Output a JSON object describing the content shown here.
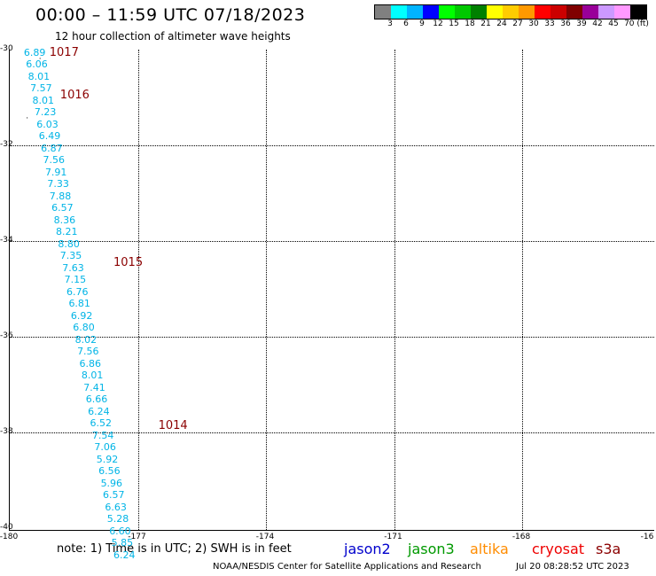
{
  "header": {
    "title": "00:00 – 11:59 UTC 07/18/2023",
    "subtitle": "12 hour collection of altimeter wave heights"
  },
  "colorbar": {
    "colors": [
      "#808080",
      "#00ffff",
      "#00b4ff",
      "#0000ff",
      "#00ff00",
      "#00c800",
      "#008000",
      "#ffff00",
      "#ffcc00",
      "#ff9900",
      "#ff0000",
      "#cc0000",
      "#800000",
      "#990099",
      "#cc99ff",
      "#ff99ff",
      "#000000"
    ],
    "labels": [
      "3",
      "6",
      "9",
      "12",
      "15",
      "18",
      "21",
      "24",
      "27",
      "30",
      "33",
      "36",
      "39",
      "42",
      "45",
      "70 (ft)"
    ]
  },
  "axes": {
    "lat_labels": [
      "-30",
      "-32",
      "-34",
      "-36",
      "-38",
      "-40"
    ],
    "lon_labels": [
      "-180",
      "-177",
      "-174",
      "-171",
      "-168",
      "-16"
    ]
  },
  "observations": [
    {
      "lat": -30.05,
      "lon": -179.65,
      "value": "6.89"
    },
    {
      "lat": -30.3,
      "lon": -179.6,
      "value": "6.06"
    },
    {
      "lat": -30.55,
      "lon": -179.55,
      "value": "8.01"
    },
    {
      "lat": -30.8,
      "lon": -179.5,
      "value": "7.57"
    },
    {
      "lat": -31.05,
      "lon": -179.45,
      "value": "8.01"
    },
    {
      "lat": -31.3,
      "lon": -179.4,
      "value": "7.23"
    },
    {
      "lat": -31.55,
      "lon": -179.35,
      "value": "6.03"
    },
    {
      "lat": -31.8,
      "lon": -179.3,
      "value": "6.49"
    },
    {
      "lat": -32.05,
      "lon": -179.25,
      "value": "6.87"
    },
    {
      "lat": -32.3,
      "lon": -179.2,
      "value": "7.56"
    },
    {
      "lat": -32.55,
      "lon": -179.15,
      "value": "7.91"
    },
    {
      "lat": -32.8,
      "lon": -179.1,
      "value": "7.33"
    },
    {
      "lat": -33.05,
      "lon": -179.05,
      "value": "7.88"
    },
    {
      "lat": -33.3,
      "lon": -179.0,
      "value": "6.57"
    },
    {
      "lat": -33.55,
      "lon": -178.95,
      "value": "8.36"
    },
    {
      "lat": -33.8,
      "lon": -178.9,
      "value": "8.21"
    },
    {
      "lat": -34.05,
      "lon": -178.85,
      "value": "8.80"
    },
    {
      "lat": -34.3,
      "lon": -178.8,
      "value": "7.35"
    },
    {
      "lat": -34.55,
      "lon": -178.75,
      "value": "7.63"
    },
    {
      "lat": -34.8,
      "lon": -178.7,
      "value": "7.15"
    },
    {
      "lat": -35.05,
      "lon": -178.65,
      "value": "6.76"
    },
    {
      "lat": -35.3,
      "lon": -178.6,
      "value": "6.81"
    },
    {
      "lat": -35.55,
      "lon": -178.55,
      "value": "6.92"
    },
    {
      "lat": -35.8,
      "lon": -178.5,
      "value": "6.80"
    },
    {
      "lat": -36.05,
      "lon": -178.45,
      "value": "8.02"
    },
    {
      "lat": -36.3,
      "lon": -178.4,
      "value": "7.56"
    },
    {
      "lat": -36.55,
      "lon": -178.35,
      "value": "6.86"
    },
    {
      "lat": -36.8,
      "lon": -178.3,
      "value": "8.01"
    },
    {
      "lat": -37.05,
      "lon": -178.25,
      "value": "7.41"
    },
    {
      "lat": -37.3,
      "lon": -178.2,
      "value": "6.66"
    },
    {
      "lat": -37.55,
      "lon": -178.15,
      "value": "6.24"
    },
    {
      "lat": -37.8,
      "lon": -178.1,
      "value": "6.52"
    },
    {
      "lat": -38.05,
      "lon": -178.05,
      "value": "7.54"
    },
    {
      "lat": -38.3,
      "lon": -178.0,
      "value": "7.06"
    },
    {
      "lat": -38.55,
      "lon": -177.95,
      "value": "5.92"
    },
    {
      "lat": -38.8,
      "lon": -177.9,
      "value": "6.56"
    },
    {
      "lat": -39.05,
      "lon": -177.85,
      "value": "5.96"
    },
    {
      "lat": -39.3,
      "lon": -177.8,
      "value": "6.57"
    },
    {
      "lat": -39.55,
      "lon": -177.75,
      "value": "6.63"
    },
    {
      "lat": -39.8,
      "lon": -177.7,
      "value": "5.28"
    },
    {
      "lat": -40.05,
      "lon": -177.65,
      "value": "6.60"
    },
    {
      "lat": -40.3,
      "lon": -177.6,
      "value": "5.85"
    },
    {
      "lat": -40.55,
      "lon": -177.55,
      "value": "6.24"
    }
  ],
  "pressure_labels": [
    {
      "lat": -30.05,
      "lon": -179.05,
      "value": "1017"
    },
    {
      "lat": -30.95,
      "lon": -178.8,
      "value": "1016"
    },
    {
      "lat": -34.45,
      "lon": -177.55,
      "value": "1015"
    },
    {
      "lat": -37.85,
      "lon": -176.5,
      "value": "1014"
    }
  ],
  "markers": [
    {
      "lat": -30.2,
      "lon": -179.3
    },
    {
      "lat": -31.45,
      "lon": -179.6
    }
  ],
  "note": "note:  1) Time is in UTC;  2) SWH is in feet",
  "satellites": [
    {
      "name": "jason2",
      "color": "#0000cc"
    },
    {
      "name": "jason3",
      "color": "#009900"
    },
    {
      "name": "altika",
      "color": "#ff8c00"
    },
    {
      "name": "cryosat",
      "color": "#ee0000"
    },
    {
      "name": "s3a",
      "color": "#8b0000"
    }
  ],
  "footer": {
    "credit": "NOAA/NESDIS Center for Satellite Applications and Research",
    "timestamp": "Jul 20 08:28:52 UTC 2023"
  }
}
